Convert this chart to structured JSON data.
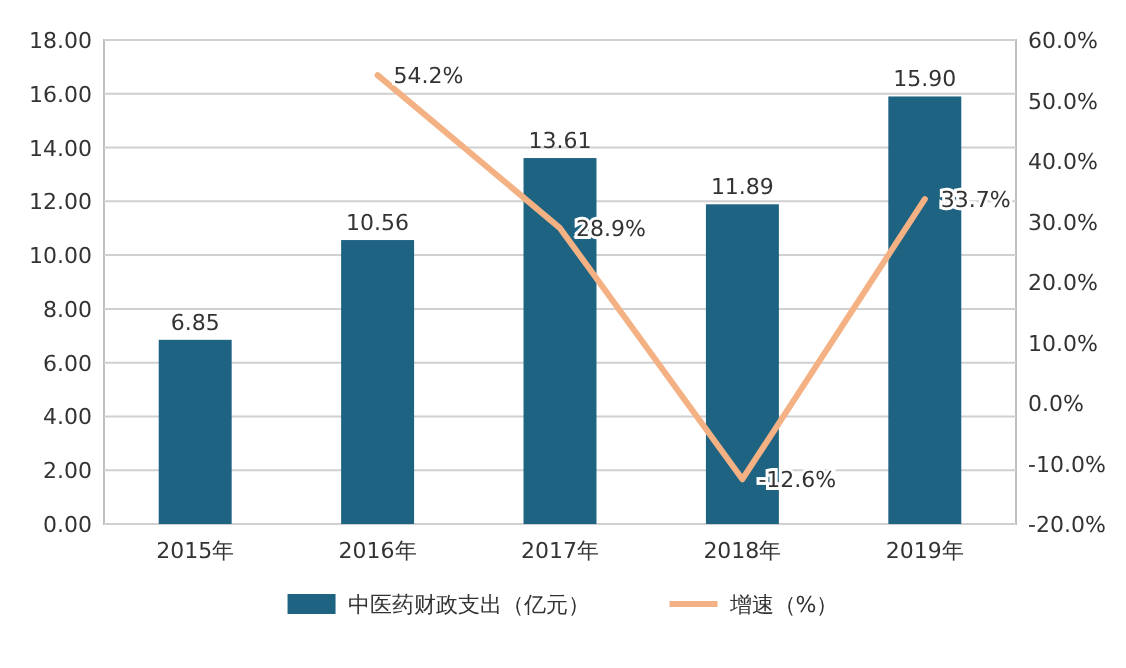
{
  "chart_data": {
    "type": "bar",
    "categories": [
      "2015年",
      "2016年",
      "2017年",
      "2018年",
      "2019年"
    ],
    "series": [
      {
        "name": "中医药财政支出（亿元）",
        "color": "#1f6382",
        "values": [
          6.85,
          10.56,
          13.61,
          11.89,
          15.9
        ],
        "value_labels": [
          "6.85",
          "10.56",
          "13.61",
          "11.89",
          "15.90"
        ]
      },
      {
        "name": "增速（%）",
        "type": "line",
        "axis": "y2",
        "color": "#f4b183",
        "values": [
          null,
          54.2,
          28.9,
          -12.6,
          33.7
        ],
        "value_labels": [
          null,
          "54.2%",
          "28.9%",
          "-12.6%",
          "33.7%"
        ]
      }
    ],
    "ylim": [
      0,
      18
    ],
    "yticks": [
      {
        "value": 0,
        "label": "0.00"
      },
      {
        "value": 2,
        "label": "2.00"
      },
      {
        "value": 4,
        "label": "4.00"
      },
      {
        "value": 6,
        "label": "6.00"
      },
      {
        "value": 8,
        "label": "8.00"
      },
      {
        "value": 10,
        "label": "10.00"
      },
      {
        "value": 12,
        "label": "12.00"
      },
      {
        "value": 14,
        "label": "14.00"
      },
      {
        "value": 16,
        "label": "16.00"
      },
      {
        "value": 18,
        "label": "18.00"
      }
    ],
    "y2lim": [
      -20,
      60
    ],
    "y2ticks": [
      {
        "value": -20,
        "label": "-20.0%"
      },
      {
        "value": -10,
        "label": "-10.0%"
      },
      {
        "value": 0,
        "label": "0.0%"
      },
      {
        "value": 10,
        "label": "10.0%"
      },
      {
        "value": 20,
        "label": "20.0%"
      },
      {
        "value": 30,
        "label": "30.0%"
      },
      {
        "value": 40,
        "label": "40.0%"
      },
      {
        "value": 50,
        "label": "50.0%"
      },
      {
        "value": 60,
        "label": "60.0%"
      }
    ],
    "grid": "y",
    "legend": "bottom",
    "marker": "none",
    "line_style": "solid"
  }
}
